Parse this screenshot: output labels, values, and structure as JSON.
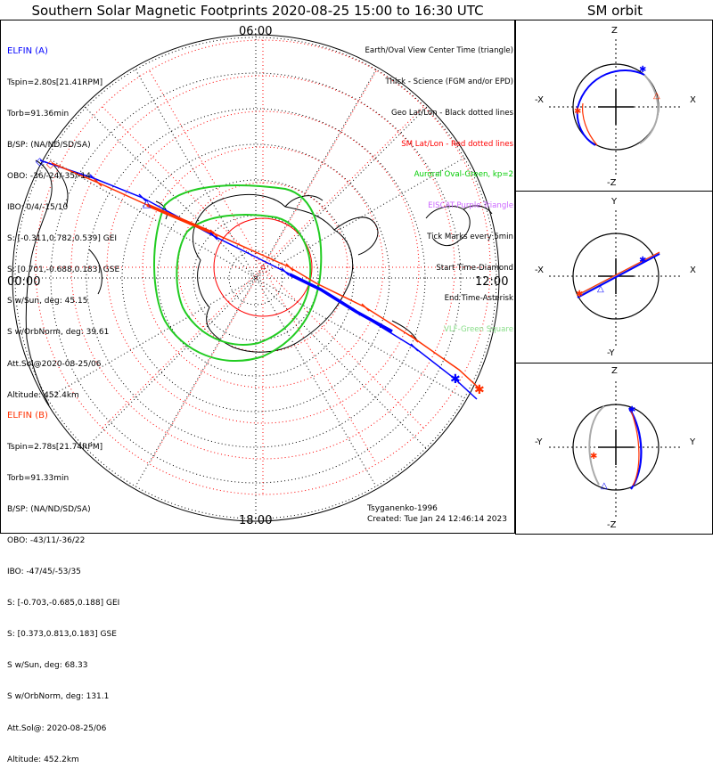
{
  "title": "Southern Solar Magnetic Footprints 2020-08-25 15:00 to 16:30 UTC",
  "orbit_title": "SM orbit",
  "clock": {
    "top": "06:00",
    "left": "00:00",
    "right": "12:00",
    "bottom": "18:00"
  },
  "elfin_a": {
    "name": "ELFIN (A)",
    "color": "#0000ff",
    "lines": [
      "Tspin=2.80s[21.41RPM]",
      "Torb=91.36min",
      "B/SP: (NA/ND/SD/SA)",
      "OBO: -36/-24/-35/-14",
      "IBO: 0/4/-15/10",
      "S: [-0.311,0.782,0.539] GEI",
      "S: [0.701,-0.688,0.183] GSE",
      "S w/Sun, deg: 45.15",
      "S w/OrbNorm, deg: 39.61",
      "Att.Sol@2020-08-25/06",
      "Altitude: 452.4km"
    ]
  },
  "elfin_b": {
    "name": "ELFIN (B)",
    "color": "#ff3000",
    "lines": [
      "Tspin=2.78s[21.74RPM]",
      "Torb=91.33min",
      "B/SP: (NA/ND/SD/SA)",
      "OBO: -43/11/-36/22",
      "IBO: -47/45/-53/35",
      "S: [-0.703,-0.685,0.188] GEI",
      "S: [0.373,0.813,0.183] GSE",
      "S w/Sun, deg: 68.33",
      "S w/OrbNorm, deg: 131.1",
      "Att.Sol@: 2020-08-25/06",
      "Altitude: 452.2km"
    ]
  },
  "legend": [
    {
      "text": "Earth/Oval View Center Time (triangle)",
      "color": "#000000"
    },
    {
      "text": "Thick - Science (FGM and/or EPD)",
      "color": "#000000"
    },
    {
      "text": "Geo Lat/Lon - Black dotted lines",
      "color": "#000000"
    },
    {
      "text": "SM Lat/Lon - Red dotted lines",
      "color": "#ff0000"
    },
    {
      "text": "Auroral Oval-Green, kp=2",
      "color": "#00cc00"
    },
    {
      "text": "EISCAT-Purple Triangle",
      "color": "#cc66ff"
    },
    {
      "text": "Tick Marks every 5min",
      "color": "#000000"
    },
    {
      "text": "Start Time-Diamond",
      "color": "#000000"
    },
    {
      "text": "End Time-Asterisk",
      "color": "#000000"
    },
    {
      "text": "VLF-Green Square",
      "color": "#88dd88"
    }
  ],
  "footer": {
    "credit": "Tsyganenko-1996",
    "created": "Created: Tue Jan 24 12:46:14 2023"
  },
  "orbit_panels": [
    {
      "top": "Z",
      "bottom": "-Z",
      "left": "-X",
      "right": "X"
    },
    {
      "top": "Y",
      "bottom": "-Y",
      "left": "-X",
      "right": "X"
    },
    {
      "top": "Z",
      "bottom": "-Z",
      "left": "-Y",
      "right": "Y"
    }
  ]
}
